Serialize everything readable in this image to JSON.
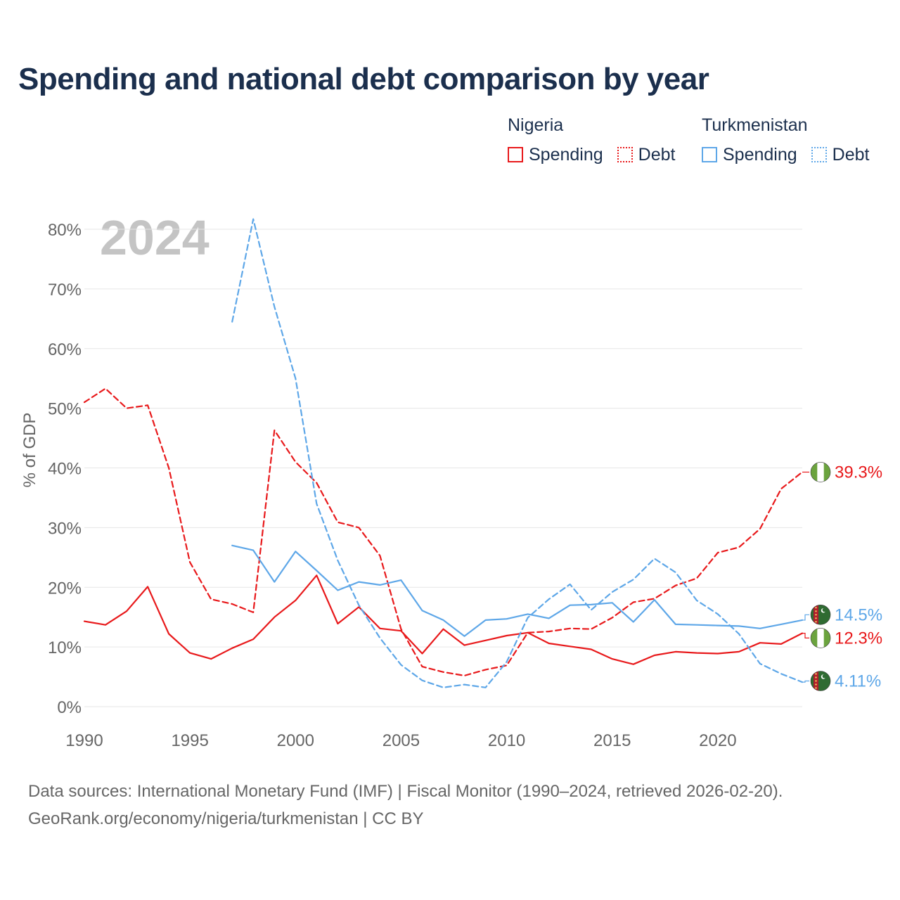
{
  "title": "Spending and national debt comparison by year",
  "legend": [
    {
      "country": "Nigeria",
      "items": [
        {
          "label": "Spending",
          "color": "#e8191b",
          "style": "solid"
        },
        {
          "label": "Debt",
          "color": "#e8191b",
          "style": "dotted"
        }
      ]
    },
    {
      "country": "Turkmenistan",
      "items": [
        {
          "label": "Spending",
          "color": "#5ea7e8",
          "style": "solid"
        },
        {
          "label": "Debt",
          "color": "#5ea7e8",
          "style": "dotted"
        }
      ]
    }
  ],
  "sources": {
    "line1": "Data sources: International Monetary Fund (IMF) | Fiscal Monitor (1990–2024, retrieved 2026-02-20).",
    "line2": "GeoRank.org/economy/nigeria/turkmenistan | CC BY"
  },
  "chart_data": {
    "type": "line",
    "year_label": "2024",
    "ylabel": "% of GDP",
    "xlim": [
      1990,
      2024
    ],
    "ylim": [
      0,
      80
    ],
    "x_ticks": [
      1990,
      1995,
      2000,
      2005,
      2010,
      2015,
      2020
    ],
    "y_ticks": [
      0,
      10,
      20,
      30,
      40,
      50,
      60,
      70,
      80
    ],
    "y_tick_labels": [
      "0%",
      "10%",
      "20%",
      "30%",
      "40%",
      "50%",
      "60%",
      "70%",
      "80%"
    ],
    "grid": true,
    "series": [
      {
        "name": "Nigeria Spending",
        "country": "Nigeria",
        "color": "#e8191b",
        "dash": false,
        "start_year": 1990,
        "end_label": "12.3%",
        "flag": "nigeria",
        "values": [
          14.3,
          13.7,
          16.0,
          20.1,
          12.2,
          9.0,
          8.0,
          9.8,
          11.3,
          15.0,
          17.8,
          22.0,
          13.9,
          16.7,
          13.1,
          12.7,
          8.9,
          13.0,
          10.3,
          11.1,
          11.9,
          12.4,
          10.6,
          10.1,
          9.6,
          8.0,
          7.1,
          8.6,
          9.2,
          9.0,
          8.9,
          9.2,
          10.7,
          10.5,
          12.3
        ]
      },
      {
        "name": "Nigeria Debt",
        "country": "Nigeria",
        "color": "#e8191b",
        "dash": true,
        "start_year": 1990,
        "end_label": "39.3%",
        "flag": "nigeria",
        "values": [
          51.0,
          53.3,
          50.0,
          50.5,
          40.0,
          24.2,
          18.0,
          17.2,
          15.8,
          46.3,
          41.0,
          37.5,
          30.9,
          30.0,
          25.3,
          13.0,
          6.7,
          5.8,
          5.2,
          6.2,
          6.9,
          12.4,
          12.6,
          13.1,
          13.0,
          14.9,
          17.5,
          18.1,
          20.3,
          21.5,
          25.8,
          26.7,
          29.8,
          36.5,
          39.3
        ]
      },
      {
        "name": "Turkmenistan Spending",
        "country": "Turkmenistan",
        "color": "#5ea7e8",
        "dash": false,
        "start_year": 1997,
        "end_label": "14.5%",
        "flag": "turkmenistan",
        "values": [
          27.0,
          26.2,
          20.9,
          26.0,
          22.8,
          19.5,
          20.9,
          20.4,
          21.2,
          16.1,
          14.5,
          11.8,
          14.5,
          14.7,
          15.5,
          14.8,
          17.0,
          17.1,
          17.4,
          14.2,
          17.9,
          13.8,
          13.7,
          13.6,
          13.5,
          13.1,
          13.8,
          14.5
        ]
      },
      {
        "name": "Turkmenistan Debt",
        "country": "Turkmenistan",
        "color": "#5ea7e8",
        "dash": true,
        "start_year": 1997,
        "end_label": "4.11%",
        "flag": "turkmenistan",
        "values": [
          64.5,
          81.7,
          67.0,
          55.0,
          34.0,
          24.5,
          17.0,
          11.5,
          7.0,
          4.4,
          3.2,
          3.7,
          3.2,
          7.5,
          14.9,
          18.0,
          20.5,
          16.2,
          19.2,
          21.3,
          24.8,
          22.5,
          17.8,
          15.5,
          12.2,
          7.2,
          5.5,
          4.11
        ]
      }
    ],
    "end_labels": [
      {
        "text": "39.3%",
        "color": "#e8191b",
        "flag": "nigeria",
        "value": 39.3,
        "label_value": 39.3
      },
      {
        "text": "14.5%",
        "color": "#5ea7e8",
        "flag": "turkmenistan",
        "value": 14.5,
        "label_value": 15.4
      },
      {
        "text": "12.3%",
        "color": "#e8191b",
        "flag": "nigeria",
        "value": 12.3,
        "label_value": 11.5
      },
      {
        "text": "4.11%",
        "color": "#5ea7e8",
        "flag": "turkmenistan",
        "value": 4.11,
        "label_value": 4.3
      }
    ]
  }
}
